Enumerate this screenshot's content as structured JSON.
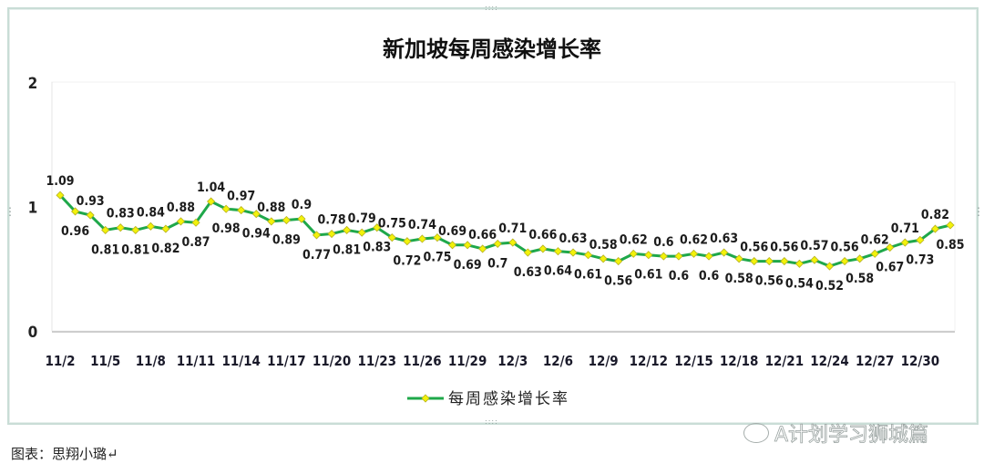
{
  "chart_data": {
    "type": "line",
    "title": "新加坡每周感染增长率",
    "xlabel": "",
    "ylabel": "",
    "ylim": [
      0,
      2
    ],
    "yticks": [
      0,
      1,
      2
    ],
    "grid": false,
    "legend_position": "bottom",
    "x_tick_labels": [
      "11/2",
      "11/5",
      "11/8",
      "11/11",
      "11/14",
      "11/17",
      "11/20",
      "11/23",
      "11/26",
      "11/29",
      "12/3",
      "12/6",
      "12/9",
      "12/12",
      "12/15",
      "12/18",
      "12/21",
      "12/24",
      "12/27",
      "12/30"
    ],
    "x_tick_every": 3,
    "series": [
      {
        "name": "每周感染增长率",
        "color": "#1fa84a",
        "marker_color": "#f2f20a",
        "values": [
          1.09,
          0.96,
          0.93,
          0.81,
          0.83,
          0.81,
          0.84,
          0.82,
          0.88,
          0.87,
          1.04,
          0.98,
          0.97,
          0.94,
          0.88,
          0.89,
          0.9,
          0.77,
          0.78,
          0.81,
          0.79,
          0.83,
          0.75,
          0.72,
          0.74,
          0.75,
          0.69,
          0.69,
          0.66,
          0.7,
          0.71,
          0.63,
          0.66,
          0.64,
          0.63,
          0.61,
          0.58,
          0.56,
          0.62,
          0.61,
          0.6,
          0.6,
          0.62,
          0.6,
          0.63,
          0.58,
          0.56,
          0.56,
          0.56,
          0.54,
          0.57,
          0.52,
          0.56,
          0.58,
          0.62,
          0.67,
          0.71,
          0.73,
          0.82,
          0.85
        ]
      }
    ]
  },
  "caption": "图表：思翔小璐↵",
  "watermark": "A计划学习狮城篇",
  "handles": {
    "top": "::::",
    "bottom": "::::",
    "side": "⋮"
  }
}
